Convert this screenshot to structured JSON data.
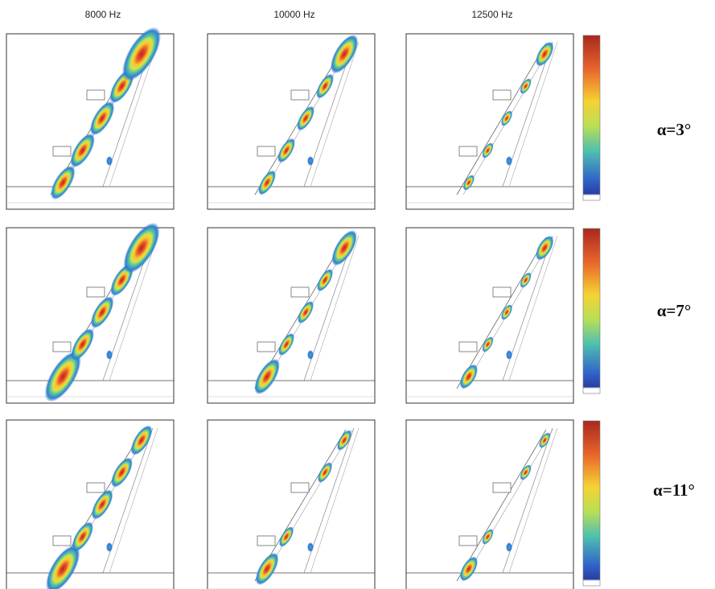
{
  "columns": [
    "8000 Hz",
    "10000 Hz",
    "12500 Hz"
  ],
  "rows": [
    "α=3°",
    "α=7°",
    "α=11°"
  ]
}
